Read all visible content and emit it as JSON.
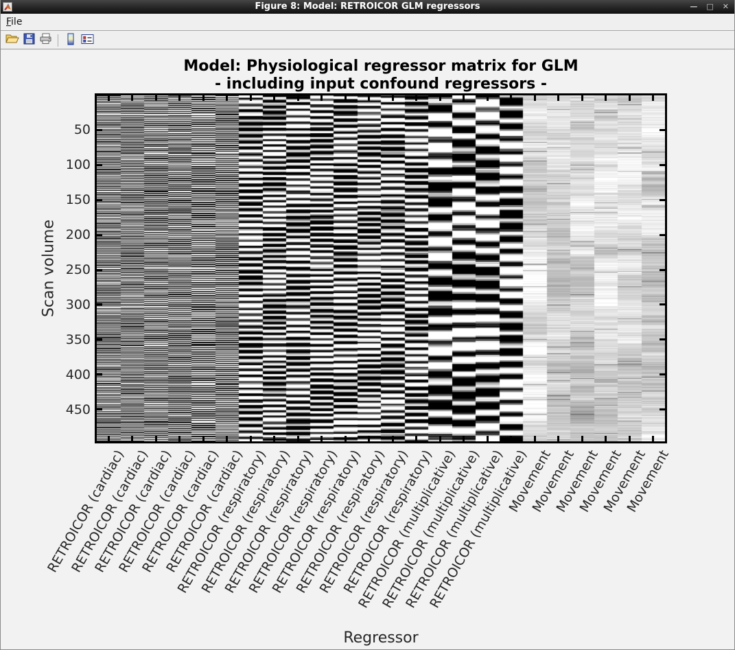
{
  "window": {
    "title": "Figure 8: Model: RETROICOR GLM regressors",
    "controls": {
      "minimize": "—",
      "maximize": "□",
      "close": "✕"
    }
  },
  "menu": {
    "file_label": "File"
  },
  "toolbar": {
    "icons": [
      "open-folder-icon",
      "save-floppy-icon",
      "print-icon",
      "colorbar-icon",
      "legend-icon"
    ]
  },
  "figure": {
    "title_line1": "Model: Physiological regressor matrix for GLM",
    "title_line2": "- including input confound regressors -",
    "xlabel": "Regressor",
    "ylabel": "Scan volume"
  },
  "colors": {
    "figure_bg": "#f2f2f2",
    "chrome_bg": "#efefef",
    "titlebar_top": "#454545",
    "titlebar_bottom": "#101010",
    "axis_color": "#000000",
    "label_color": "#262626"
  },
  "chart_data": {
    "type": "heatmap",
    "title": "Model: Physiological regressor matrix for GLM - including input confound regressors -",
    "xlabel": "Regressor",
    "ylabel": "Scan volume",
    "colormap": "gray",
    "value_range": [
      0,
      1
    ],
    "n_rows": 495,
    "n_cols": 24,
    "y_ticks": [
      50,
      100,
      150,
      200,
      250,
      300,
      350,
      400,
      450
    ],
    "grid": false,
    "legend": false,
    "categories": [
      "RETROICOR (cardiac)",
      "RETROICOR (cardiac)",
      "RETROICOR (cardiac)",
      "RETROICOR (cardiac)",
      "RETROICOR (cardiac)",
      "RETROICOR (cardiac)",
      "RETROICOR (respiratory)",
      "RETROICOR (respiratory)",
      "RETROICOR (respiratory)",
      "RETROICOR (respiratory)",
      "RETROICOR (respiratory)",
      "RETROICOR (respiratory)",
      "RETROICOR (respiratory)",
      "RETROICOR (respiratory)",
      "RETROICOR (multiplicative)",
      "RETROICOR (multiplicative)",
      "RETROICOR (multiplicative)",
      "RETROICOR (multiplicative)",
      "Movement",
      "Movement",
      "Movement",
      "Movement",
      "Movement",
      "Movement"
    ],
    "column_groups": [
      {
        "label": "RETROICOR (cardiac)",
        "count": 6,
        "appearance": "high-contrast fast black/white striping",
        "texture": {
          "mean": 0.5,
          "amp": 0.9,
          "base_freq": 2.3,
          "noise": 0.45,
          "slow_freq": 0,
          "slow_amp": 0,
          "walk": 0,
          "spike": 0
        }
      },
      {
        "label": "RETROICOR (respiratory)",
        "count": 8,
        "appearance": "high-contrast medium-width banding",
        "texture": {
          "mean": 0.5,
          "amp": 0.85,
          "base_freq": 0.75,
          "noise": 0.4,
          "slow_freq": 0.06,
          "slow_amp": 0.35,
          "walk": 0,
          "spike": 0
        }
      },
      {
        "label": "RETROICOR (multiplicative)",
        "count": 4,
        "appearance": "high-contrast blocky dark/bright runs",
        "texture": {
          "mean": 0.5,
          "amp": 0.95,
          "base_freq": 0.32,
          "noise": 0.3,
          "slow_freq": 0.04,
          "slow_amp": 0.55,
          "walk": 0,
          "spike": 0
        }
      },
      {
        "label": "Movement",
        "count": 6,
        "appearance": "low-contrast light gray fine streaks",
        "texture": {
          "mean": 0.84,
          "amp": 0.05,
          "base_freq": 0.03,
          "noise": 0.07,
          "slow_freq": 0.01,
          "slow_amp": 0.05,
          "walk": 0.12,
          "spike": 0.03
        }
      }
    ]
  }
}
